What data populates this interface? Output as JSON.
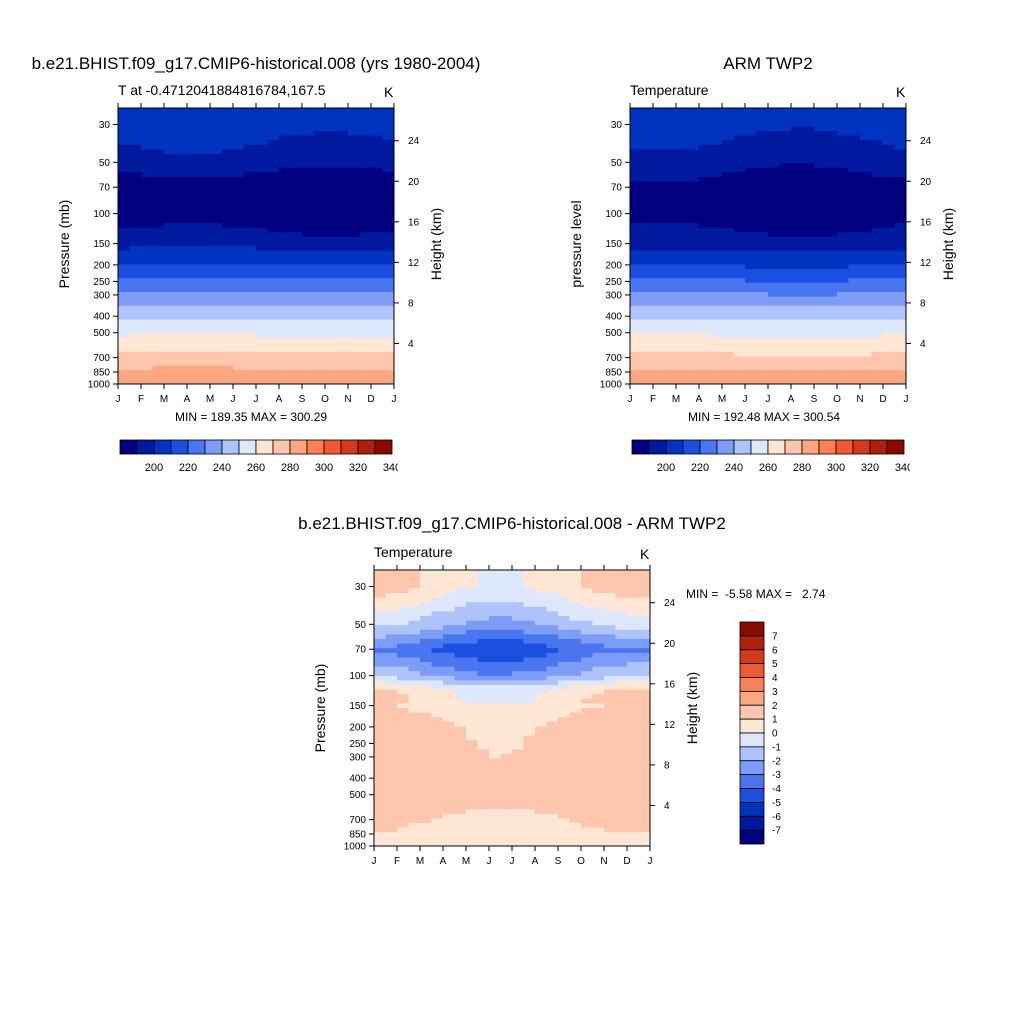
{
  "chart_data": [
    {
      "type": "heatmap",
      "title": "b.e21.BHIST.f09_g17.CMIP6-historical.008 (yrs 1980-2004)",
      "subtitle_left": "T at -0.4712041884816784,167.5",
      "subtitle_right": "K",
      "xlabel": "",
      "ylabel": "Pressure (mb)",
      "ylabel_right": "Height (km)",
      "x_ticks": [
        "J",
        "F",
        "M",
        "A",
        "M",
        "J",
        "J",
        "A",
        "S",
        "O",
        "N",
        "D",
        "J"
      ],
      "y_ticks": [
        "30",
        "50",
        "70",
        "100",
        "150",
        "200",
        "250",
        "300",
        "400",
        "500",
        "700",
        "850",
        "1000"
      ],
      "y2_ticks": [
        "24",
        "20",
        "16",
        "12",
        "8",
        "4"
      ],
      "stats": "MIN = 189.35 MAX = 300.29",
      "colorbar_labels": [
        "200",
        "220",
        "240",
        "260",
        "280",
        "300",
        "320",
        "340"
      ],
      "levels": [
        190,
        200,
        210,
        220,
        230,
        240,
        250,
        260,
        270,
        280,
        290,
        300,
        310,
        320,
        330,
        340,
        350
      ],
      "profile": [
        {
          "p": 30,
          "value": 215
        },
        {
          "p": 50,
          "value": 205
        },
        {
          "p": 70,
          "value": 193
        },
        {
          "p": 100,
          "value": 192
        },
        {
          "p": 150,
          "value": 207
        },
        {
          "p": 200,
          "value": 220
        },
        {
          "p": 250,
          "value": 232
        },
        {
          "p": 300,
          "value": 242
        },
        {
          "p": 400,
          "value": 258
        },
        {
          "p": 500,
          "value": 268
        },
        {
          "p": 700,
          "value": 283
        },
        {
          "p": 850,
          "value": 292
        },
        {
          "p": 1000,
          "value": 299
        }
      ]
    },
    {
      "type": "heatmap",
      "title": "ARM TWP2",
      "subtitle_left": "Temperature",
      "subtitle_right": "K",
      "xlabel": "",
      "ylabel": "pressure level",
      "ylabel_right": "Height (km)",
      "x_ticks": [
        "J",
        "F",
        "M",
        "A",
        "M",
        "J",
        "J",
        "A",
        "S",
        "O",
        "N",
        "D",
        "J"
      ],
      "y_ticks": [
        "30",
        "50",
        "70",
        "100",
        "150",
        "200",
        "250",
        "300",
        "400",
        "500",
        "700",
        "850",
        "1000"
      ],
      "y2_ticks": [
        "24",
        "20",
        "16",
        "12",
        "8",
        "4"
      ],
      "stats": "MIN = 192.48 MAX = 300.54",
      "colorbar_labels": [
        "200",
        "220",
        "240",
        "260",
        "280",
        "300",
        "320",
        "340"
      ],
      "levels": [
        190,
        200,
        210,
        220,
        230,
        240,
        250,
        260,
        270,
        280,
        290,
        300,
        310,
        320,
        330,
        340,
        350
      ],
      "profile": [
        {
          "p": 30,
          "value": 214
        },
        {
          "p": 50,
          "value": 204
        },
        {
          "p": 70,
          "value": 195
        },
        {
          "p": 100,
          "value": 193
        },
        {
          "p": 150,
          "value": 206
        },
        {
          "p": 200,
          "value": 219
        },
        {
          "p": 250,
          "value": 231
        },
        {
          "p": 300,
          "value": 241
        },
        {
          "p": 400,
          "value": 257
        },
        {
          "p": 500,
          "value": 268
        },
        {
          "p": 700,
          "value": 282
        },
        {
          "p": 850,
          "value": 291
        },
        {
          "p": 1000,
          "value": 300
        }
      ]
    },
    {
      "type": "heatmap",
      "title": "b.e21.BHIST.f09_g17.CMIP6-historical.008 - ARM TWP2",
      "subtitle_left": "Temperature",
      "subtitle_right": "K",
      "xlabel": "",
      "ylabel": "Pressure (mb)",
      "ylabel_right": "Height (km)",
      "x_ticks": [
        "J",
        "F",
        "M",
        "A",
        "M",
        "J",
        "J",
        "A",
        "S",
        "O",
        "N",
        "D",
        "J"
      ],
      "y_ticks": [
        "30",
        "50",
        "70",
        "100",
        "150",
        "200",
        "250",
        "300",
        "400",
        "500",
        "700",
        "850",
        "1000"
      ],
      "y2_ticks": [
        "24",
        "20",
        "16",
        "12",
        "8",
        "4"
      ],
      "stats": "MIN =  -5.58 MAX =   2.74",
      "colorbar_labels": [
        "7",
        "6",
        "5",
        "4",
        "3",
        "2",
        "1",
        "0",
        "-1",
        "-2",
        "-3",
        "-4",
        "-5",
        "-6",
        "-7"
      ],
      "levels": [
        -8,
        -7,
        -6,
        -5,
        -4,
        -3,
        -2,
        -1,
        0,
        1,
        2,
        3,
        4,
        5,
        6,
        7,
        8
      ],
      "profile": [
        {
          "p": 30,
          "value": 0.8
        },
        {
          "p": 50,
          "value": -1.5
        },
        {
          "p": 70,
          "value": -4.0
        },
        {
          "p": 100,
          "value": -2.0
        },
        {
          "p": 120,
          "value": 0.3
        },
        {
          "p": 150,
          "value": 0.8
        },
        {
          "p": 200,
          "value": 1.2
        },
        {
          "p": 300,
          "value": 1.3
        },
        {
          "p": 500,
          "value": 1.6
        },
        {
          "p": 700,
          "value": 1.0
        },
        {
          "p": 850,
          "value": 0.7
        },
        {
          "p": 1000,
          "value": 0.4
        }
      ]
    }
  ],
  "palette": [
    "#000080",
    "#001a9f",
    "#0033c0",
    "#1a4fe0",
    "#4a75f0",
    "#7d9cf7",
    "#aec3fb",
    "#dde8fd",
    "#ffe6d5",
    "#fec7ad",
    "#fca682",
    "#f8815a",
    "#ee5a32",
    "#d43a1a",
    "#b01f0a",
    "#8b0a00"
  ],
  "diff_palette": [
    "#000080",
    "#001a9f",
    "#0033c0",
    "#1a4fe0",
    "#4a75f0",
    "#7d9cf7",
    "#aec3fb",
    "#dde8fd",
    "#ffe6d5",
    "#fec7ad",
    "#fca682",
    "#f8815a",
    "#ee5a32",
    "#d43a1a",
    "#b01f0a",
    "#8b0a00"
  ]
}
